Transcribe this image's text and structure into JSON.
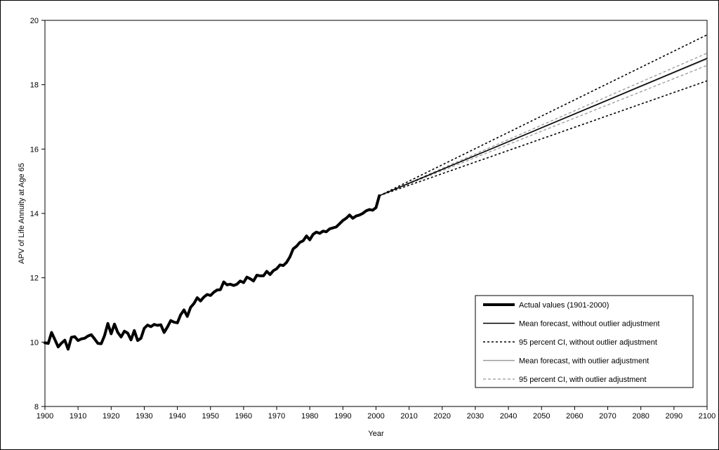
{
  "chart_data": {
    "type": "line",
    "title": "",
    "xlabel": "Year",
    "ylabel": "APV of Life Annuity at Age 65",
    "xlim": [
      1900,
      2100
    ],
    "ylim": [
      8,
      20
    ],
    "x_ticks": [
      1900,
      1910,
      1920,
      1930,
      1940,
      1950,
      1960,
      1970,
      1980,
      1990,
      2000,
      2010,
      2020,
      2030,
      2040,
      2050,
      2060,
      2070,
      2080,
      2090,
      2100
    ],
    "y_ticks": [
      8,
      10,
      12,
      14,
      16,
      18,
      20
    ],
    "grid": false,
    "legend_position": "bottom-right",
    "series": [
      {
        "name": "Actual values (1901-2000)",
        "style": "thick-solid",
        "color": "#000000",
        "x": [
          1900,
          1901,
          1902,
          1903,
          1904,
          1905,
          1906,
          1907,
          1908,
          1909,
          1910,
          1911,
          1912,
          1913,
          1914,
          1915,
          1916,
          1917,
          1918,
          1919,
          1920,
          1921,
          1922,
          1923,
          1924,
          1925,
          1926,
          1927,
          1928,
          1929,
          1930,
          1931,
          1932,
          1933,
          1934,
          1935,
          1936,
          1937,
          1938,
          1939,
          1940,
          1941,
          1942,
          1943,
          1944,
          1945,
          1946,
          1947,
          1948,
          1949,
          1950,
          1951,
          1952,
          1953,
          1954,
          1955,
          1956,
          1957,
          1958,
          1959,
          1960,
          1961,
          1962,
          1963,
          1964,
          1965,
          1966,
          1967,
          1968,
          1969,
          1970,
          1971,
          1972,
          1973,
          1974,
          1975,
          1976,
          1977,
          1978,
          1979,
          1980,
          1981,
          1982,
          1983,
          1984,
          1985,
          1986,
          1987,
          1988,
          1989,
          1990,
          1991,
          1992,
          1993,
          1994,
          1995,
          1996,
          1997,
          1998,
          1999,
          2000,
          2001
        ],
        "values": [
          9.98,
          9.96,
          10.3,
          10.08,
          9.85,
          9.97,
          10.06,
          9.78,
          10.15,
          10.17,
          10.05,
          10.1,
          10.12,
          10.19,
          10.23,
          10.1,
          9.96,
          9.95,
          10.2,
          10.58,
          10.26,
          10.56,
          10.3,
          10.16,
          10.34,
          10.28,
          10.07,
          10.36,
          10.05,
          10.12,
          10.43,
          10.53,
          10.48,
          10.55,
          10.52,
          10.54,
          10.3,
          10.47,
          10.67,
          10.62,
          10.6,
          10.85,
          11.0,
          10.8,
          11.08,
          11.2,
          11.38,
          11.28,
          11.4,
          11.48,
          11.45,
          11.55,
          11.62,
          11.63,
          11.87,
          11.78,
          11.8,
          11.76,
          11.8,
          11.9,
          11.85,
          12.02,
          11.97,
          11.9,
          12.08,
          12.06,
          12.06,
          12.2,
          12.1,
          12.22,
          12.28,
          12.4,
          12.38,
          12.48,
          12.65,
          12.9,
          12.98,
          13.1,
          13.15,
          13.3,
          13.18,
          13.35,
          13.42,
          13.38,
          13.45,
          13.43,
          13.52,
          13.55,
          13.58,
          13.68,
          13.78,
          13.85,
          13.95,
          13.85,
          13.92,
          13.95,
          14.0,
          14.08,
          14.12,
          14.1,
          14.18,
          14.55
        ]
      },
      {
        "name": "Mean forecast, without outlier adjustment",
        "style": "solid",
        "color": "#000000",
        "x": [
          2001,
          2100
        ],
        "values": [
          14.55,
          18.82
        ]
      },
      {
        "name": "95 percent CI, without outlier adjustment",
        "style": "dotted",
        "color": "#000000",
        "x": [
          2001,
          2100
        ],
        "values": [
          14.55,
          19.55
        ],
        "lower": [
          14.55,
          18.12
        ]
      },
      {
        "name": "Mean forecast, with outlier adjustment",
        "style": "solid",
        "color": "#999999",
        "x": [
          2001,
          2100
        ],
        "values": [
          14.55,
          18.8
        ]
      },
      {
        "name": "95 percent CI, with outlier adjustment",
        "style": "dashed",
        "color": "#999999",
        "x": [
          2001,
          2100
        ],
        "values": [
          14.55,
          18.98
        ],
        "lower": [
          14.55,
          18.6
        ]
      }
    ]
  }
}
